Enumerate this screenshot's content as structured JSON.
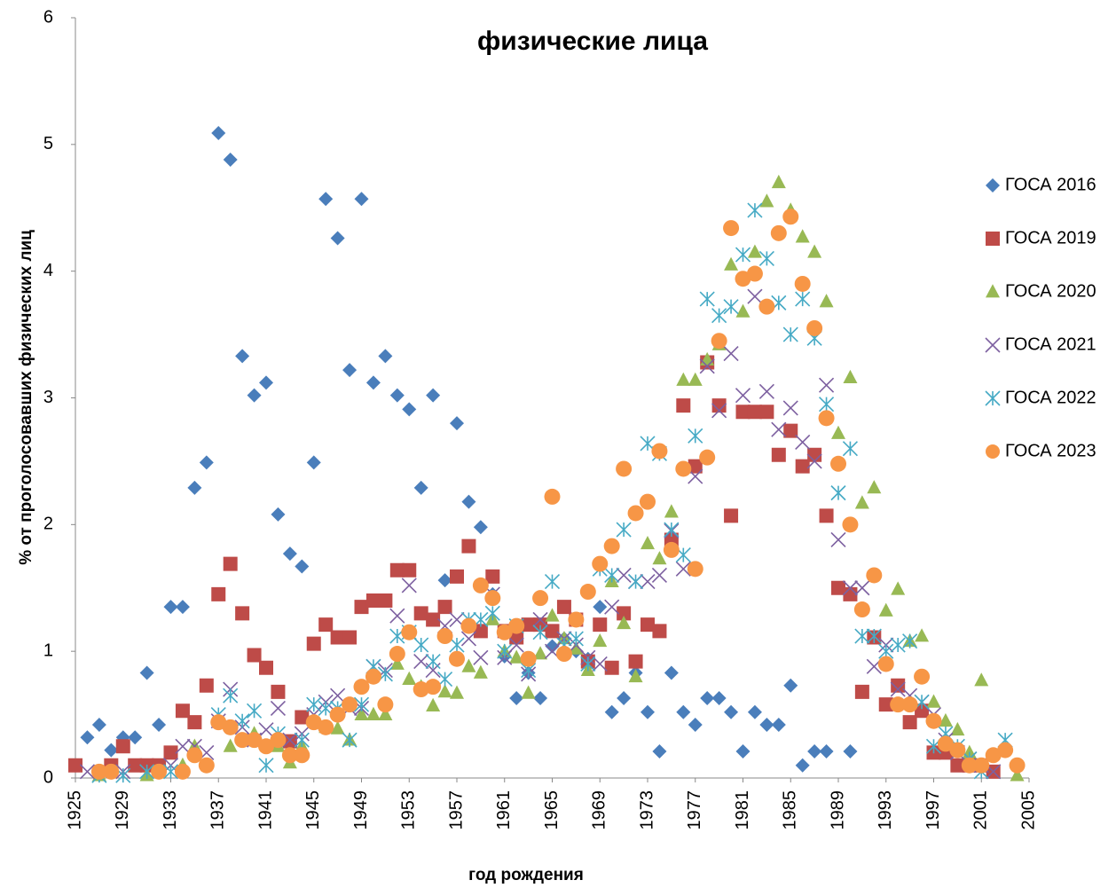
{
  "chart_data": {
    "type": "scatter",
    "title": "физические лица",
    "x_label": "год рождения",
    "y_label": "% от проголосовавших физических лиц",
    "xlim": [
      1925,
      2005
    ],
    "xticks": [
      1925,
      1929,
      1933,
      1937,
      1941,
      1945,
      1949,
      1953,
      1957,
      1961,
      1965,
      1969,
      1973,
      1977,
      1981,
      1985,
      1989,
      1993,
      1997,
      2001,
      2005
    ],
    "ylim": [
      0,
      6
    ],
    "yticks": [
      0,
      1,
      2,
      3,
      4,
      5,
      6
    ],
    "grid": false,
    "legend": "right",
    "series": [
      {
        "name": "ГОСА 2016",
        "color": "#4a7ebb",
        "marker": "diamond",
        "x": [
          1926,
          1927,
          1928,
          1929,
          1930,
          1931,
          1932,
          1933,
          1934,
          1935,
          1936,
          1937,
          1938,
          1939,
          1940,
          1941,
          1942,
          1943,
          1944,
          1945,
          1946,
          1947,
          1948,
          1949,
          1950,
          1951,
          1952,
          1953,
          1954,
          1955,
          1956,
          1957,
          1958,
          1959,
          1960,
          1961,
          1962,
          1963,
          1964,
          1965,
          1966,
          1967,
          1968,
          1969,
          1970,
          1971,
          1972,
          1973,
          1974,
          1975,
          1976,
          1977,
          1978,
          1979,
          1980,
          1981,
          1982,
          1983,
          1984,
          1985,
          1986,
          1987,
          1988,
          1990
        ],
        "values": [
          0.32,
          0.42,
          0.22,
          0.32,
          0.32,
          0.83,
          0.42,
          1.35,
          1.35,
          2.29,
          2.49,
          5.09,
          4.88,
          3.33,
          3.02,
          3.12,
          2.08,
          1.77,
          1.67,
          2.49,
          4.57,
          4.26,
          3.22,
          4.57,
          3.12,
          3.33,
          3.02,
          2.91,
          2.29,
          3.02,
          1.56,
          2.8,
          2.18,
          1.98,
          1.45,
          0.96,
          0.63,
          0.83,
          0.63,
          1.04,
          1.1,
          1.0,
          0.94,
          1.35,
          0.52,
          0.63,
          0.83,
          0.52,
          0.21,
          0.83,
          0.52,
          0.42,
          0.63,
          0.63,
          0.52,
          0.21,
          0.52,
          0.42,
          0.42,
          0.73,
          0.1,
          0.21,
          0.21,
          0.21
        ]
      },
      {
        "name": "ГОСА 2019",
        "color": "#be4b48",
        "marker": "square",
        "x": [
          1925,
          1928,
          1929,
          1930,
          1931,
          1932,
          1933,
          1934,
          1935,
          1936,
          1937,
          1938,
          1939,
          1940,
          1941,
          1942,
          1943,
          1944,
          1945,
          1946,
          1947,
          1948,
          1949,
          1950,
          1951,
          1952,
          1953,
          1954,
          1955,
          1956,
          1957,
          1958,
          1959,
          1960,
          1961,
          1962,
          1963,
          1964,
          1965,
          1966,
          1967,
          1968,
          1969,
          1970,
          1971,
          1972,
          1973,
          1974,
          1975,
          1976,
          1977,
          1978,
          1979,
          1980,
          1981,
          1982,
          1983,
          1984,
          1985,
          1986,
          1987,
          1988,
          1989,
          1990,
          1991,
          1992,
          1993,
          1994,
          1995,
          1996,
          1997,
          1998,
          1999,
          2000,
          2001,
          2002
        ],
        "values": [
          0.1,
          0.1,
          0.25,
          0.1,
          0.1,
          0.1,
          0.2,
          0.53,
          0.44,
          0.73,
          1.45,
          1.69,
          1.3,
          0.97,
          0.87,
          0.68,
          0.29,
          0.48,
          1.06,
          1.21,
          1.11,
          1.11,
          1.35,
          1.4,
          1.4,
          1.64,
          1.64,
          1.3,
          1.25,
          1.35,
          1.59,
          1.83,
          1.16,
          1.59,
          1.16,
          1.11,
          1.21,
          1.21,
          1.16,
          1.35,
          1.25,
          0.92,
          1.21,
          0.87,
          1.3,
          0.92,
          1.21,
          1.16,
          1.88,
          2.94,
          2.46,
          3.28,
          2.94,
          2.07,
          2.89,
          2.89,
          2.89,
          2.55,
          2.74,
          2.46,
          2.55,
          2.07,
          1.5,
          1.45,
          0.68,
          1.11,
          0.58,
          0.73,
          0.44,
          0.53,
          0.2,
          0.2,
          0.1,
          0.1,
          0.1,
          0.05
        ]
      },
      {
        "name": "ГОСА 2020",
        "color": "#98b954",
        "marker": "triangle",
        "x": [
          1927,
          1931,
          1934,
          1935,
          1938,
          1940,
          1942,
          1943,
          1944,
          1946,
          1947,
          1948,
          1949,
          1950,
          1951,
          1952,
          1953,
          1954,
          1955,
          1956,
          1957,
          1958,
          1959,
          1960,
          1961,
          1962,
          1963,
          1964,
          1965,
          1966,
          1967,
          1968,
          1969,
          1970,
          1971,
          1972,
          1973,
          1974,
          1975,
          1976,
          1977,
          1978,
          1979,
          1980,
          1981,
          1982,
          1983,
          1984,
          1985,
          1986,
          1987,
          1988,
          1989,
          1990,
          1991,
          1992,
          1993,
          1994,
          1995,
          1996,
          1997,
          1998,
          1999,
          2000,
          2001,
          2004
        ],
        "values": [
          0.02,
          0.02,
          0.1,
          0.25,
          0.25,
          0.35,
          0.25,
          0.12,
          0.25,
          0.4,
          0.39,
          0.3,
          0.5,
          0.5,
          0.5,
          0.9,
          0.78,
          0.72,
          0.57,
          0.68,
          0.67,
          0.88,
          0.83,
          1.25,
          1.0,
          0.95,
          0.67,
          0.98,
          1.28,
          1.1,
          1.02,
          0.85,
          1.08,
          1.55,
          1.22,
          0.8,
          1.85,
          1.73,
          2.1,
          3.14,
          3.14,
          3.3,
          3.42,
          4.05,
          3.68,
          4.15,
          4.55,
          4.7,
          4.48,
          4.27,
          4.15,
          3.76,
          2.72,
          3.16,
          2.17,
          2.29,
          1.32,
          1.49,
          1.08,
          1.12,
          0.6,
          0.45,
          0.38,
          0.2,
          0.77,
          0.02
        ]
      },
      {
        "name": "ГОСА 2021",
        "color": "#7d60a0",
        "marker": "x",
        "x": [
          1926,
          1929,
          1933,
          1934,
          1935,
          1936,
          1937,
          1938,
          1939,
          1940,
          1941,
          1942,
          1943,
          1944,
          1945,
          1946,
          1947,
          1948,
          1949,
          1950,
          1951,
          1952,
          1953,
          1954,
          1955,
          1956,
          1957,
          1958,
          1959,
          1960,
          1961,
          1962,
          1963,
          1964,
          1965,
          1966,
          1967,
          1968,
          1969,
          1970,
          1971,
          1972,
          1973,
          1974,
          1975,
          1976,
          1977,
          1978,
          1979,
          1980,
          1981,
          1982,
          1983,
          1984,
          1985,
          1986,
          1987,
          1988,
          1989,
          1990,
          1991,
          1992,
          1993,
          1994,
          1995,
          1996,
          1997,
          1998,
          1999,
          2000,
          2001,
          2002
        ],
        "values": [
          0.05,
          0.05,
          0.1,
          0.25,
          0.25,
          0.2,
          0.45,
          0.7,
          0.4,
          0.3,
          0.38,
          0.55,
          0.3,
          0.35,
          0.5,
          0.6,
          0.65,
          0.55,
          0.55,
          0.88,
          0.85,
          1.28,
          1.52,
          0.92,
          0.85,
          1.2,
          1.25,
          1.1,
          0.95,
          1.45,
          0.95,
          1.05,
          0.82,
          1.25,
          1.0,
          1.1,
          1.05,
          0.95,
          0.9,
          1.35,
          1.6,
          1.55,
          1.55,
          1.6,
          1.95,
          1.65,
          2.38,
          3.25,
          2.9,
          3.35,
          3.02,
          3.8,
          3.05,
          2.75,
          2.92,
          2.65,
          2.5,
          3.1,
          1.88,
          1.5,
          1.5,
          0.88,
          1.05,
          0.7,
          0.65,
          0.6,
          0.5,
          0.3,
          0.2,
          0.15,
          0.1,
          0.05
        ]
      },
      {
        "name": "ГОСА 2022",
        "color": "#46aac5",
        "marker": "asterisk",
        "x": [
          1927,
          1929,
          1931,
          1933,
          1937,
          1938,
          1939,
          1940,
          1941,
          1942,
          1944,
          1945,
          1946,
          1947,
          1948,
          1949,
          1950,
          1951,
          1952,
          1953,
          1954,
          1955,
          1956,
          1957,
          1958,
          1959,
          1960,
          1961,
          1962,
          1963,
          1964,
          1965,
          1966,
          1967,
          1968,
          1969,
          1970,
          1971,
          1972,
          1973,
          1974,
          1975,
          1976,
          1977,
          1978,
          1979,
          1980,
          1981,
          1982,
          1983,
          1984,
          1985,
          1986,
          1987,
          1988,
          1989,
          1990,
          1991,
          1992,
          1993,
          1994,
          1995,
          1996,
          1997,
          1998,
          1999,
          2000,
          2001,
          2003
        ],
        "values": [
          0.02,
          0.02,
          0.05,
          0.05,
          0.5,
          0.65,
          0.45,
          0.53,
          0.1,
          0.35,
          0.3,
          0.58,
          0.55,
          0.55,
          0.3,
          0.58,
          0.88,
          0.82,
          1.12,
          1.15,
          1.05,
          0.92,
          0.78,
          1.05,
          1.25,
          1.25,
          1.3,
          1.0,
          1.2,
          0.85,
          1.15,
          1.55,
          1.05,
          1.1,
          0.9,
          1.65,
          1.6,
          1.96,
          1.55,
          2.64,
          2.56,
          1.96,
          1.76,
          2.7,
          3.78,
          3.65,
          3.72,
          4.13,
          4.48,
          4.1,
          3.75,
          3.5,
          3.78,
          3.47,
          2.95,
          2.25,
          2.6,
          1.12,
          1.12,
          1.0,
          1.05,
          1.08,
          0.6,
          0.25,
          0.35,
          0.25,
          0.15,
          0.05,
          0.3
        ]
      },
      {
        "name": "ГОСА 2023",
        "color": "#f79646",
        "marker": "circle",
        "x": [
          1927,
          1928,
          1932,
          1934,
          1935,
          1936,
          1937,
          1938,
          1939,
          1940,
          1941,
          1942,
          1943,
          1944,
          1945,
          1946,
          1947,
          1948,
          1949,
          1950,
          1951,
          1952,
          1953,
          1954,
          1955,
          1956,
          1957,
          1958,
          1959,
          1960,
          1961,
          1962,
          1963,
          1964,
          1965,
          1966,
          1967,
          1968,
          1969,
          1970,
          1971,
          1972,
          1973,
          1974,
          1975,
          1976,
          1977,
          1978,
          1979,
          1980,
          1981,
          1982,
          1983,
          1984,
          1985,
          1986,
          1987,
          1988,
          1989,
          1990,
          1991,
          1992,
          1993,
          1994,
          1995,
          1996,
          1997,
          1998,
          1999,
          2000,
          2001,
          2002,
          2003,
          2004
        ],
        "values": [
          0.05,
          0.05,
          0.05,
          0.05,
          0.18,
          0.1,
          0.44,
          0.4,
          0.3,
          0.3,
          0.25,
          0.3,
          0.18,
          0.18,
          0.44,
          0.4,
          0.5,
          0.58,
          0.72,
          0.8,
          0.58,
          0.98,
          1.15,
          0.7,
          0.72,
          1.12,
          0.94,
          1.2,
          1.52,
          1.42,
          1.15,
          1.2,
          0.94,
          1.42,
          2.22,
          0.98,
          1.25,
          1.47,
          1.69,
          1.83,
          2.44,
          2.09,
          2.18,
          2.58,
          1.8,
          2.44,
          1.65,
          2.53,
          3.45,
          4.34,
          3.94,
          3.98,
          3.72,
          4.3,
          4.43,
          3.9,
          3.55,
          2.84,
          2.48,
          2.0,
          1.33,
          1.6,
          0.9,
          0.58,
          0.58,
          0.8,
          0.45,
          0.27,
          0.22,
          0.1,
          0.1,
          0.18,
          0.22,
          0.1
        ]
      }
    ]
  }
}
